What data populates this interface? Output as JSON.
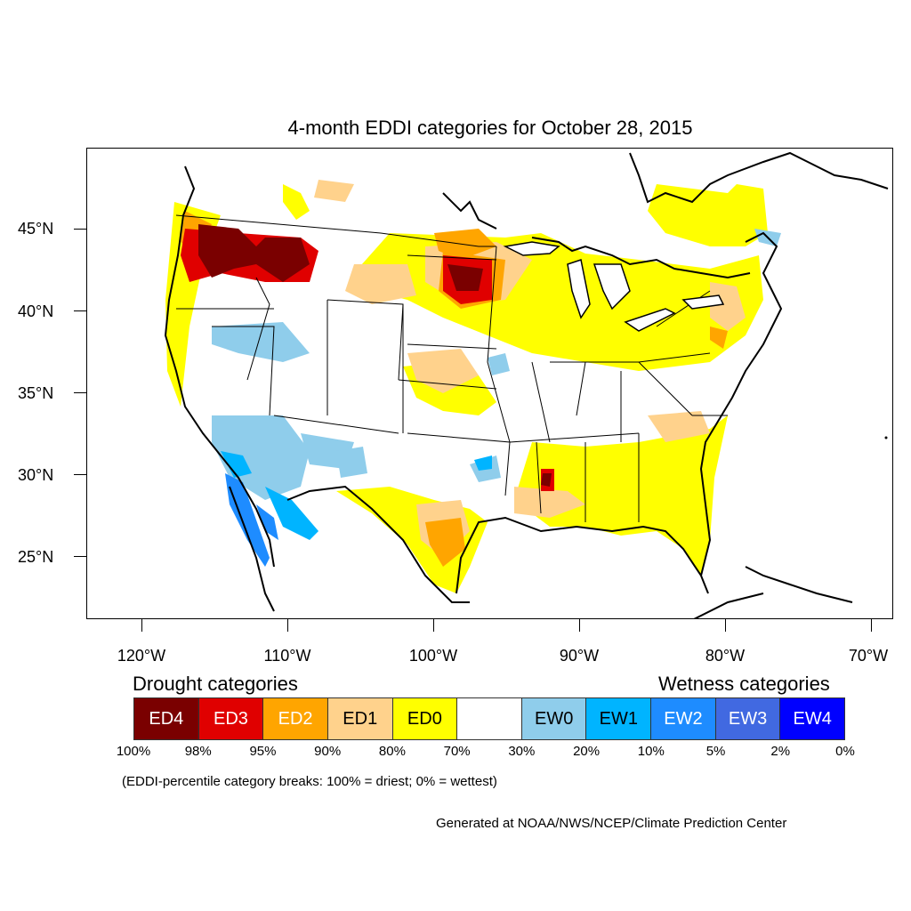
{
  "title": "4-month EDDI categories for October 28, 2015",
  "map": {
    "lat_labels": [
      "45°N",
      "40°N",
      "35°N",
      "30°N",
      "25°N"
    ],
    "lon_labels": [
      "120°W",
      "110°W",
      "100°W",
      "90°W",
      "80°W",
      "70°W"
    ]
  },
  "legend": {
    "drought_heading": "Drought categories",
    "wetness_heading": "Wetness categories",
    "categories": [
      {
        "label": "ED4",
        "color": "#7a0000",
        "text_color": "#ffffff"
      },
      {
        "label": "ED3",
        "color": "#e00000",
        "text_color": "#ffffff"
      },
      {
        "label": "ED2",
        "color": "#ffa500",
        "text_color": "#ffffff"
      },
      {
        "label": "ED1",
        "color": "#ffd28c",
        "text_color": "#000000"
      },
      {
        "label": "ED0",
        "color": "#ffff00",
        "text_color": "#000000"
      },
      {
        "label": "",
        "color": "#ffffff",
        "text_color": "#000000"
      },
      {
        "label": "EW0",
        "color": "#8fcdeb",
        "text_color": "#000000"
      },
      {
        "label": "EW1",
        "color": "#00b4ff",
        "text_color": "#000000"
      },
      {
        "label": "EW2",
        "color": "#1e8cff",
        "text_color": "#ffffff"
      },
      {
        "label": "EW3",
        "color": "#4169e1",
        "text_color": "#ffffff"
      },
      {
        "label": "EW4",
        "color": "#0000ff",
        "text_color": "#ffffff"
      }
    ],
    "breaks": [
      "100%",
      "98%",
      "95%",
      "90%",
      "80%",
      "70%",
      "30%",
      "20%",
      "10%",
      "5%",
      "2%",
      "0%"
    ],
    "footnote": "(EDDI-percentile category breaks: 100% = driest; 0% = wettest)"
  },
  "credit": "Generated at NOAA/NWS/NCEP/Climate Prediction Center"
}
